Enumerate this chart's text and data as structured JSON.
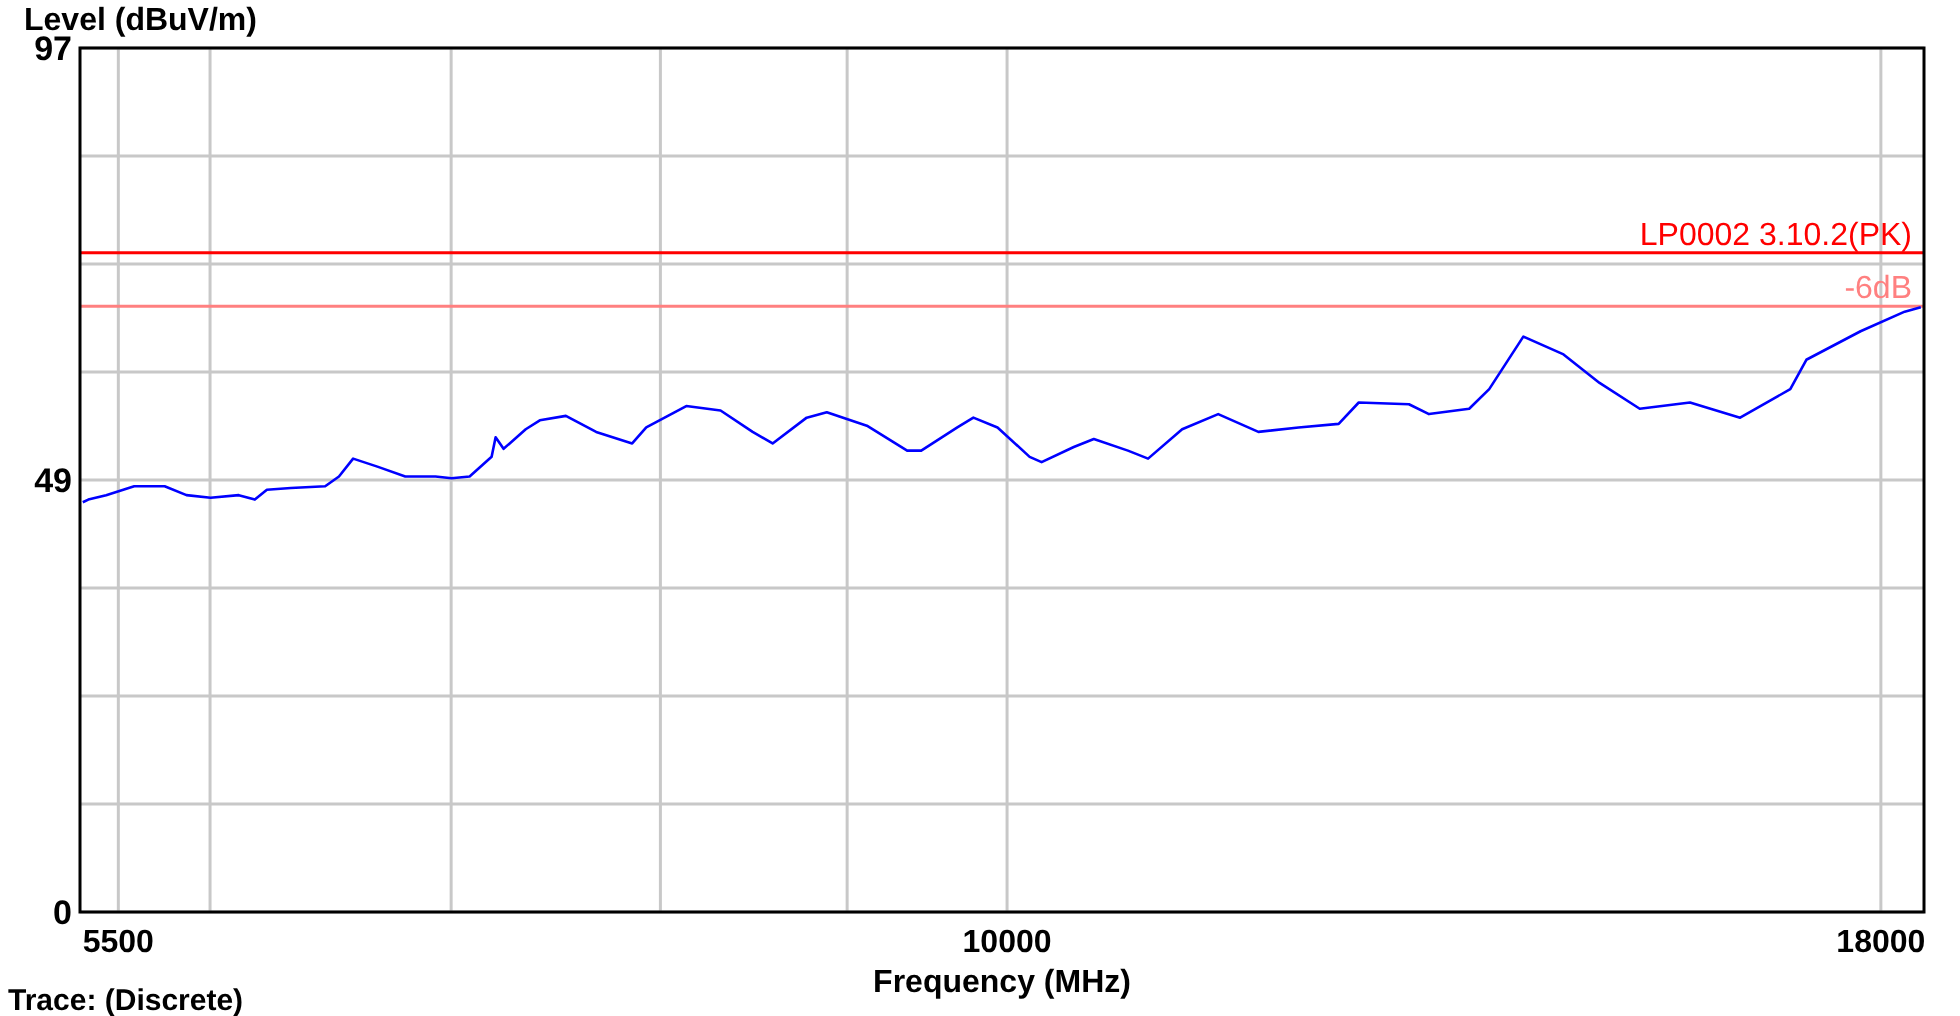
{
  "chart_data": {
    "type": "line",
    "ylabel": "Level (dBuV/m)",
    "xlabel": "Frequency (MHz)",
    "log": "x",
    "xlim": [
      5360,
      18530
    ],
    "xticks": [
      5500,
      {
        "value": 5850,
        "label": null
      },
      {
        "value": 6880,
        "label": null
      },
      {
        "value": 7920,
        "label": null
      },
      {
        "value": 8980,
        "label": null
      },
      10000,
      18000
    ],
    "ylim": [
      0,
      97
    ],
    "yticks": [
      0,
      {
        "value": 12.125,
        "label": null
      },
      {
        "value": 24.25,
        "label": null
      },
      {
        "value": 36.375,
        "label": null
      },
      {
        "value": 48.5,
        "label": "49"
      },
      {
        "value": 60.625,
        "label": null
      },
      {
        "value": 72.75,
        "label": null
      },
      {
        "value": 84.875,
        "label": null
      },
      97
    ],
    "grid": true,
    "marker": "none",
    "line_style": "solid",
    "x": [
      5370,
      5390,
      5455,
      5559,
      5674,
      5758,
      5852,
      5964,
      6029,
      6078,
      6177,
      6321,
      6380,
      6441,
      6547,
      6671,
      6808,
      6882,
      6966,
      7070,
      7089,
      7127,
      7234,
      7303,
      7432,
      7585,
      7771,
      7845,
      8059,
      8247,
      8427,
      8541,
      8739,
      8858,
      9100,
      9350,
      9439,
      9671,
      9776,
      9936,
      10153,
      10235,
      10459,
      10601,
      10847,
      10995,
      11250,
      11526,
      11842,
      12166,
      12499,
      12669,
      13104,
      13282,
      13646,
      13831,
      14152,
      14540,
      14897,
      15305,
      15831,
      16374,
      16936,
      17120,
      17756,
      18291,
      18490
    ],
    "series": [
      {
        "color": "#0000ff",
        "values": [
          46.0,
          46.3,
          46.8,
          47.8,
          47.8,
          46.8,
          46.5,
          46.8,
          46.3,
          47.4,
          47.6,
          47.8,
          48.9,
          50.9,
          50.0,
          48.9,
          48.9,
          48.7,
          48.9,
          51.1,
          53.3,
          52.0,
          54.2,
          55.2,
          55.7,
          53.9,
          52.6,
          54.4,
          56.8,
          56.3,
          53.9,
          52.6,
          55.5,
          56.1,
          54.6,
          51.8,
          51.8,
          54.4,
          55.5,
          54.4,
          51.1,
          50.5,
          52.2,
          53.1,
          51.8,
          50.9,
          54.2,
          55.9,
          53.9,
          54.4,
          54.8,
          57.2,
          57.0,
          55.9,
          56.5,
          58.7,
          64.6,
          62.6,
          59.4,
          56.5,
          57.2,
          55.5,
          58.7,
          62.0,
          65.2,
          67.4,
          67.9
        ]
      }
    ],
    "ref_lines": [
      {
        "axis": "y",
        "value": 74,
        "label": "LP0002 3.10.2(PK)",
        "color": "#ff0000",
        "line_style": "solid"
      },
      {
        "axis": "y",
        "value": 68,
        "label": "-6dB",
        "color": "#ff8080",
        "line_style": "solid"
      }
    ],
    "annotations": [
      "Trace: (Discrete)"
    ]
  }
}
